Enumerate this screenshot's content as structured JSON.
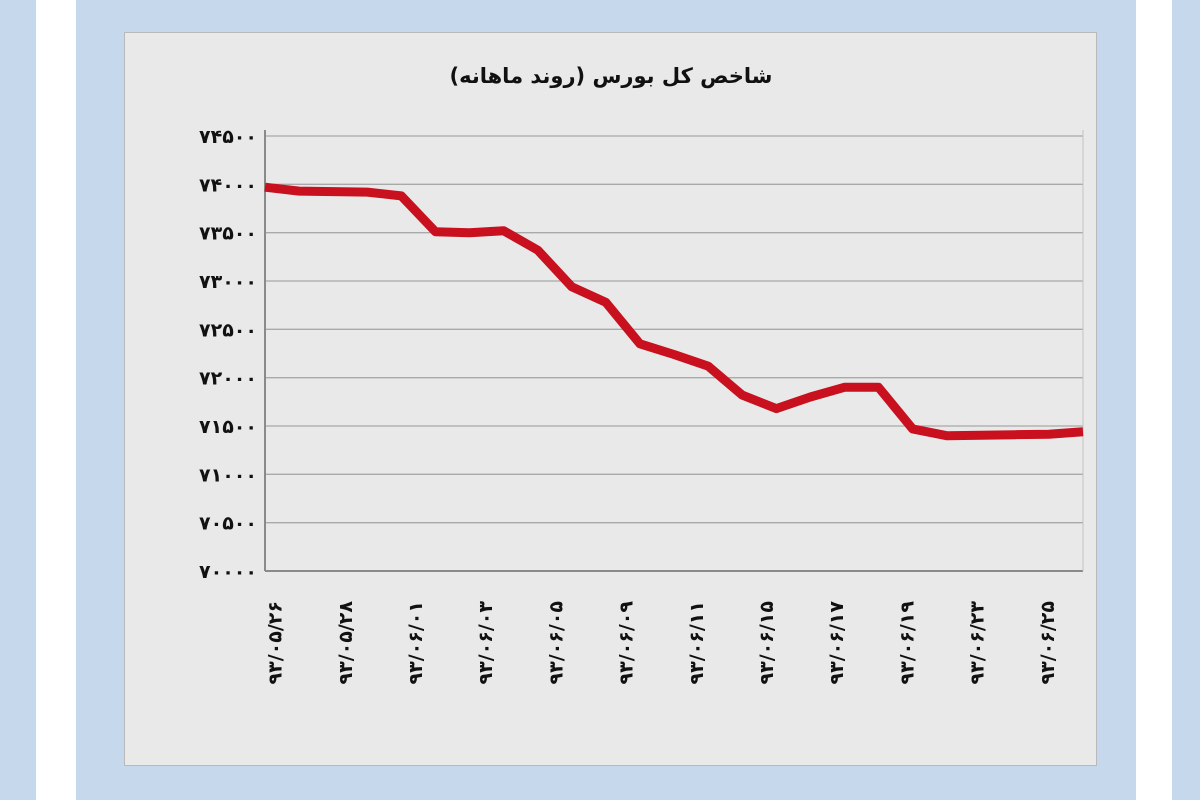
{
  "colors": {
    "frame": "#c6d8ec",
    "panel": "#e9e9e9",
    "line": "#c8101e",
    "grid": "#a9a9a9",
    "text": "#111111"
  },
  "chart_data": {
    "type": "line",
    "title": "شاخص کل بورس (روند ماهانه)",
    "xlabel": "",
    "ylabel": "",
    "ylim": [
      70000,
      74500
    ],
    "y_ticks": [
      70000,
      70500,
      71000,
      71500,
      72000,
      72500,
      73000,
      73500,
      74000,
      74500
    ],
    "y_tick_labels": [
      "۷۰۰۰۰",
      "۷۰۵۰۰",
      "۷۱۰۰۰",
      "۷۱۵۰۰",
      "۷۲۰۰۰",
      "۷۲۵۰۰",
      "۷۳۰۰۰",
      "۷۳۵۰۰",
      "۷۴۰۰۰",
      "۷۴۵۰۰"
    ],
    "x_tick_labels": [
      "۹۳/۰۵/۲۶",
      "۹۳/۰۵/۲۸",
      "۹۳/۰۶/۰۱",
      "۹۳/۰۶/۰۳",
      "۹۳/۰۶/۰۵",
      "۹۳/۰۶/۰۹",
      "۹۳/۰۶/۱۱",
      "۹۳/۰۶/۱۵",
      "۹۳/۰۶/۱۷",
      "۹۳/۰۶/۱۹",
      "۹۳/۰۶/۲۳",
      "۹۳/۰۶/۲۵"
    ],
    "grid": true,
    "legend": "none",
    "series": [
      {
        "values": [
          73970,
          73930,
          73925,
          73920,
          73880,
          73510,
          73500,
          73520,
          73320,
          72940,
          72780,
          72350,
          72240,
          72120,
          71820,
          71680,
          71800,
          71900,
          71900,
          71470,
          71400,
          71405,
          71410,
          71415,
          71440
        ]
      }
    ]
  }
}
